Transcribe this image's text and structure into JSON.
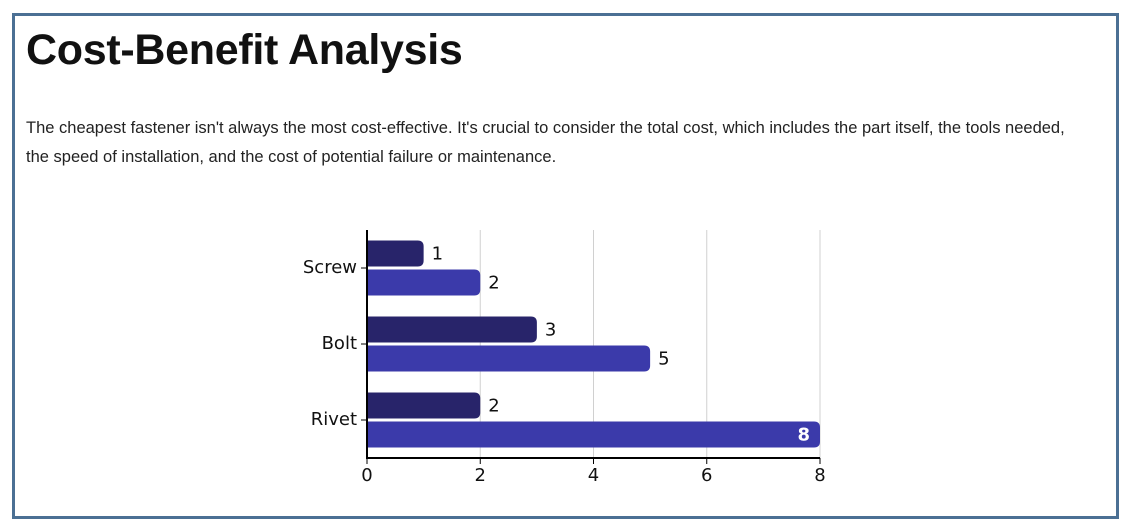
{
  "heading": "Cost-Benefit Analysis",
  "description": "The cheapest fastener isn't always the most cost-effective. It's crucial to consider the total cost, which includes the part itself, the tools needed, the speed of installation, and the cost of potential failure or maintenance.",
  "chart_data": {
    "type": "hbar",
    "categories": [
      "Screw",
      "Bolt",
      "Rivet"
    ],
    "series": [
      {
        "color": "#28246a",
        "values": [
          1,
          3,
          2
        ]
      },
      {
        "color": "#3b3aaa",
        "values": [
          2,
          5,
          8
        ]
      }
    ],
    "xlim": [
      0,
      8
    ],
    "xticks": [
      0,
      2,
      4,
      6,
      8
    ],
    "grid": true
  }
}
